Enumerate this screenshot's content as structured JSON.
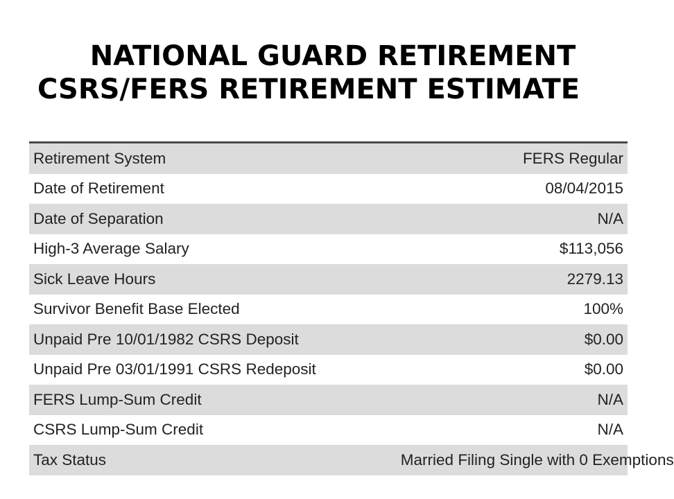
{
  "title": {
    "line1": "NATIONAL GUARD RETIREMENT",
    "line2": "CSRS/FERS RETIREMENT ESTIMATE"
  },
  "colors": {
    "shaded_row": "#dcdcdc",
    "plain_row": "#ffffff",
    "table_top_border": "#4a4a4a"
  },
  "rows": [
    {
      "label": "Retirement System",
      "value": "FERS Regular"
    },
    {
      "label": "Date of Retirement",
      "value": "08/04/2015"
    },
    {
      "label": "Date of Separation",
      "value": "N/A"
    },
    {
      "label": "High-3 Average Salary",
      "value": "$113,056"
    },
    {
      "label": "Sick Leave Hours",
      "value": "2279.13"
    },
    {
      "label": "Survivor Benefit Base Elected",
      "value": "100%"
    },
    {
      "label": "Unpaid Pre 10/01/1982 CSRS Deposit",
      "value": "$0.00"
    },
    {
      "label": "Unpaid Pre 03/01/1991 CSRS Redeposit",
      "value": "$0.00"
    },
    {
      "label": "FERS Lump-Sum Credit",
      "value": "N/A"
    },
    {
      "label": "CSRS Lump-Sum Credit",
      "value": "N/A"
    },
    {
      "label": "Tax Status",
      "value": "Married Filing Single with 0 Exemptions"
    }
  ]
}
